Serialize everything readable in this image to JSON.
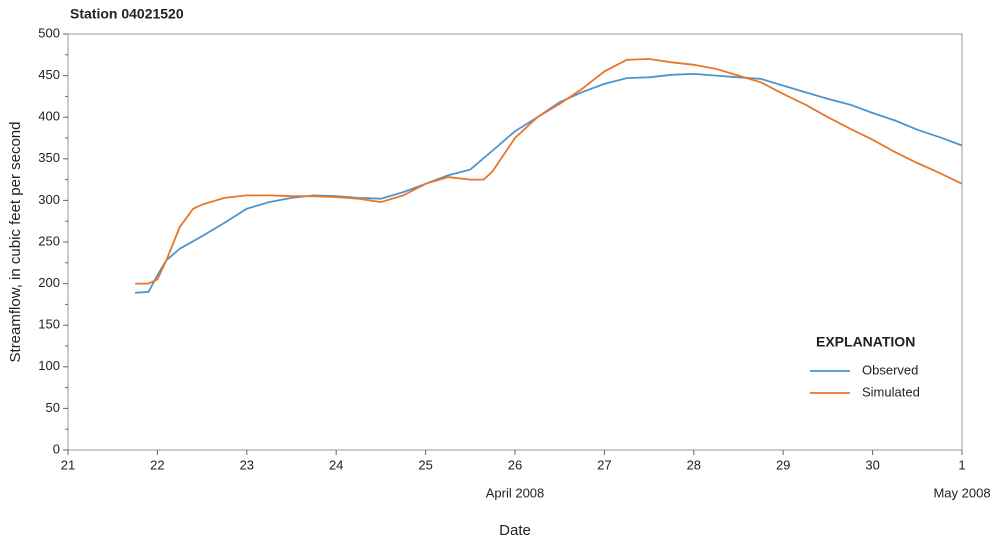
{
  "chart_data": {
    "type": "line",
    "title": "Station 04021520",
    "ylabel": "Streamflow, in cubic feet per second",
    "xlabel": "Date",
    "xlim": [
      21,
      31
    ],
    "ylim": [
      0,
      500
    ],
    "xticks": [
      21,
      22,
      23,
      24,
      25,
      26,
      27,
      28,
      29,
      30,
      {
        "value": 31,
        "label": "1"
      }
    ],
    "xsublabels": [
      {
        "value": 26,
        "label": "April 2008"
      },
      {
        "value": 31,
        "label": "May 2008"
      }
    ],
    "yticks": [
      0,
      50,
      100,
      150,
      200,
      250,
      300,
      350,
      400,
      450,
      500
    ],
    "yminorticks": [
      25,
      75,
      125,
      175,
      225,
      275,
      325,
      375,
      425,
      475
    ],
    "grid": false,
    "legend_title": "EXPLANATION",
    "legend_position": "right",
    "series": [
      {
        "name": "Observed",
        "color": "#4f94cd",
        "x": [
          21.75,
          21.9,
          22.0,
          22.1,
          22.25,
          22.5,
          22.75,
          23.0,
          23.25,
          23.5,
          23.75,
          24.0,
          24.25,
          24.5,
          24.75,
          25.0,
          25.25,
          25.5,
          25.75,
          26.0,
          26.25,
          26.5,
          26.75,
          27.0,
          27.25,
          27.5,
          27.75,
          28.0,
          28.25,
          28.5,
          28.75,
          29.0,
          29.25,
          29.5,
          29.75,
          30.0,
          30.25,
          30.5,
          30.75,
          31.0
        ],
        "values": [
          189,
          190,
          210,
          228,
          242,
          257,
          273,
          290,
          298,
          303,
          306,
          305,
          303,
          302,
          310,
          320,
          330,
          337,
          360,
          383,
          400,
          418,
          430,
          440,
          447,
          448,
          451,
          452,
          450,
          448,
          446,
          438,
          430,
          422,
          415,
          405,
          396,
          385,
          376,
          366
        ]
      },
      {
        "name": "Simulated",
        "color": "#e8762b",
        "x": [
          21.75,
          21.9,
          22.0,
          22.1,
          22.25,
          22.4,
          22.5,
          22.75,
          23.0,
          23.25,
          23.5,
          23.75,
          24.0,
          24.25,
          24.5,
          24.75,
          25.0,
          25.25,
          25.5,
          25.65,
          25.75,
          26.0,
          26.25,
          26.5,
          26.75,
          27.0,
          27.25,
          27.5,
          27.75,
          28.0,
          28.25,
          28.5,
          28.75,
          29.0,
          29.25,
          29.5,
          29.75,
          30.0,
          30.25,
          30.5,
          30.75,
          31.0
        ],
        "values": [
          200,
          200,
          205,
          228,
          268,
          290,
          295,
          303,
          306,
          306,
          305,
          305,
          304,
          302,
          298,
          306,
          320,
          328,
          325,
          325,
          335,
          375,
          400,
          416,
          434,
          455,
          469,
          470,
          466,
          463,
          458,
          450,
          442,
          428,
          415,
          400,
          386,
          373,
          358,
          345,
          333,
          320
        ]
      }
    ]
  }
}
